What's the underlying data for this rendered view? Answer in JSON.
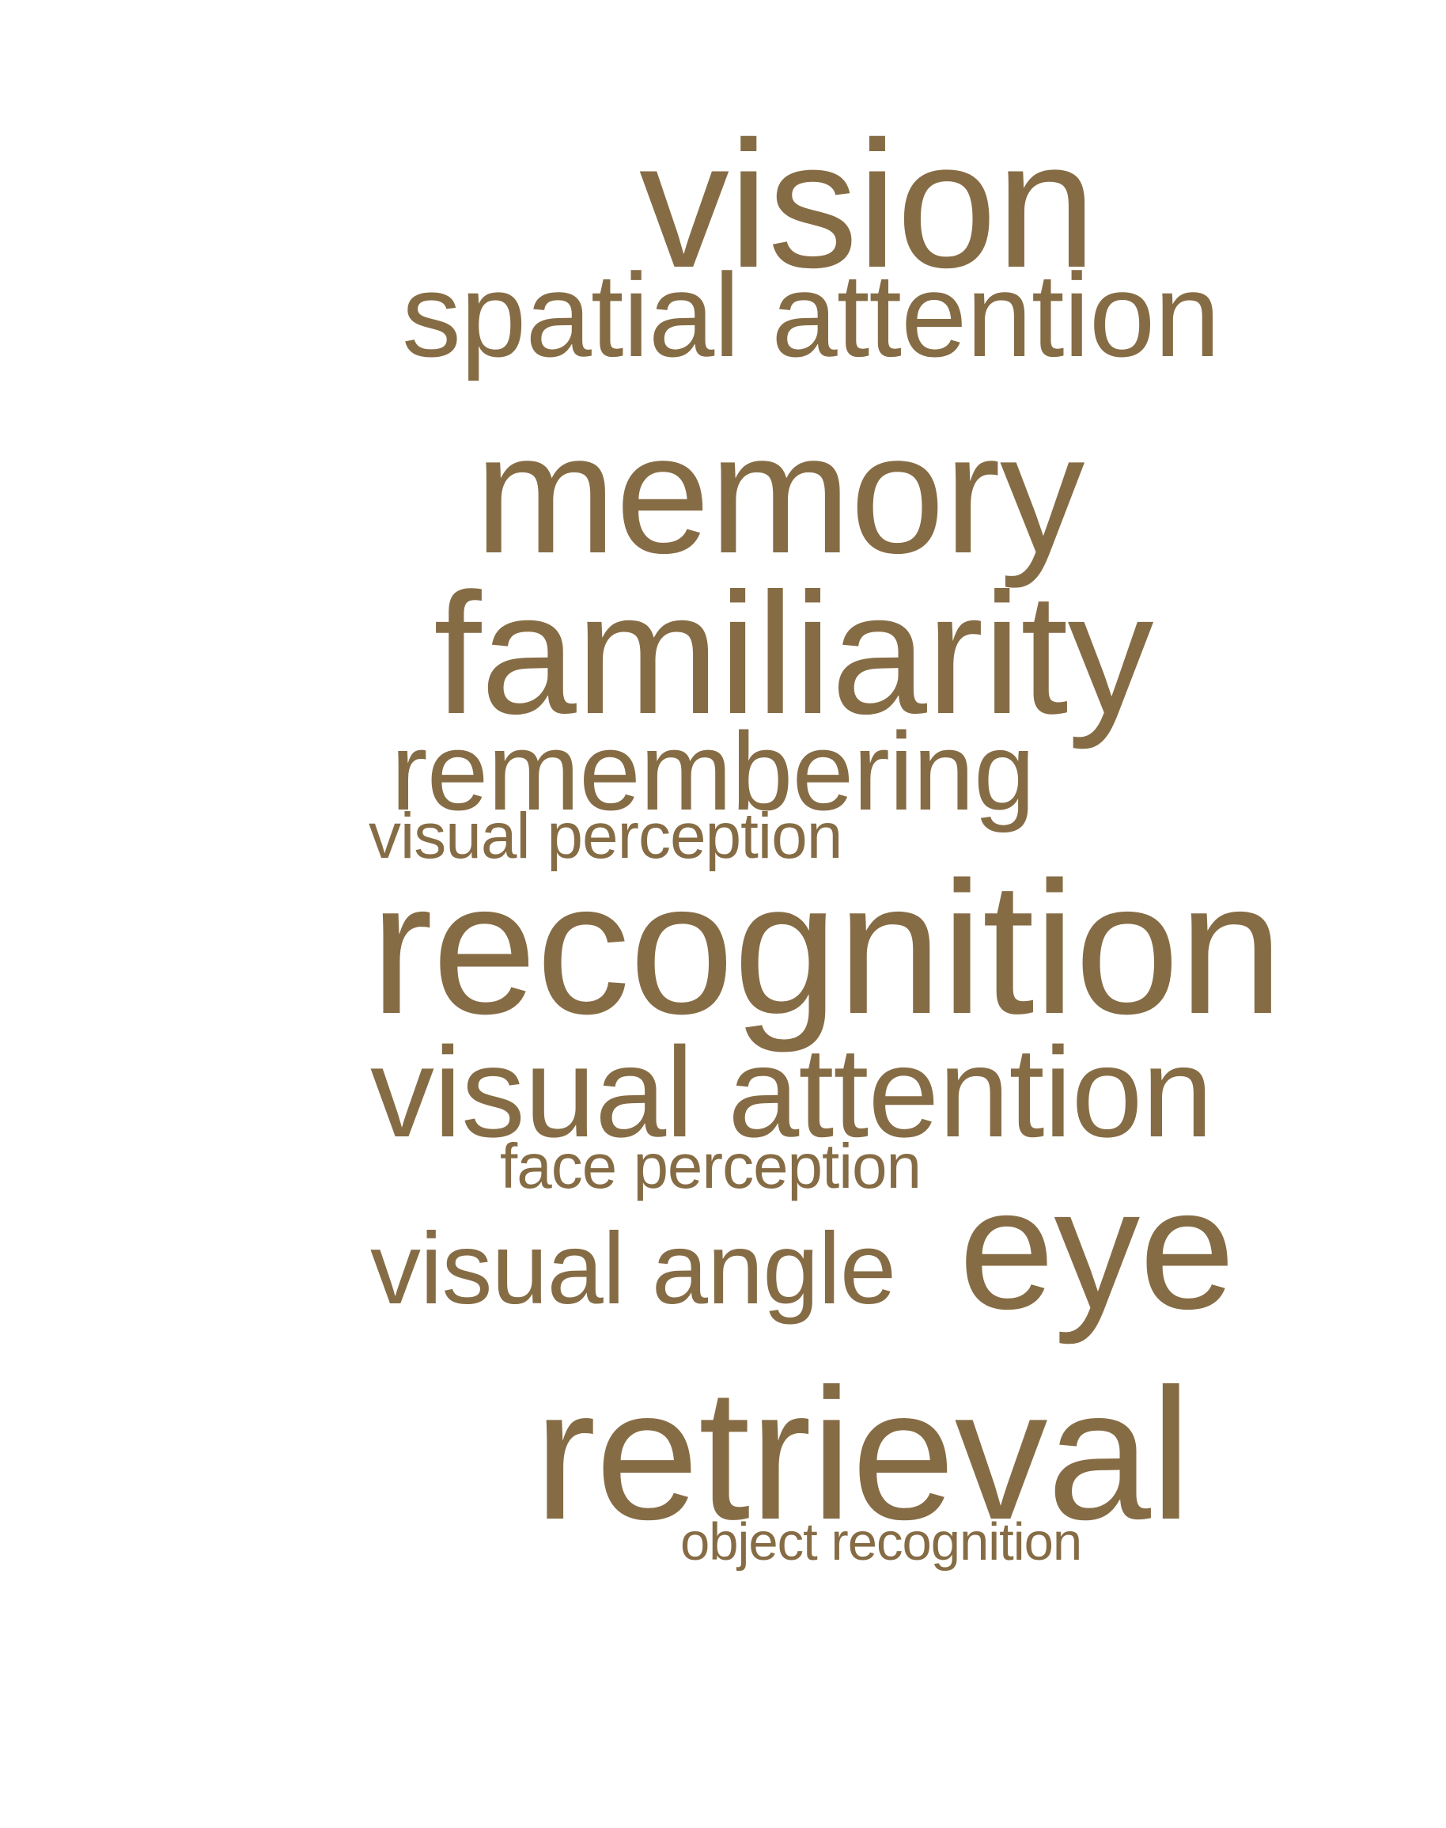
{
  "text_color": "#866c45",
  "background_color": "#ffffff",
  "words": [
    {
      "text": "vision"
    },
    {
      "text": "spatial attention"
    },
    {
      "text": "memory"
    },
    {
      "text": "familiarity"
    },
    {
      "text": "remembering"
    },
    {
      "text": "visual perception"
    },
    {
      "text": "recognition"
    },
    {
      "text": "visual attention"
    },
    {
      "text": "face perception"
    },
    {
      "text": "visual angle"
    },
    {
      "text": "eye"
    },
    {
      "text": "retrieval"
    },
    {
      "text": "object recognition"
    }
  ]
}
